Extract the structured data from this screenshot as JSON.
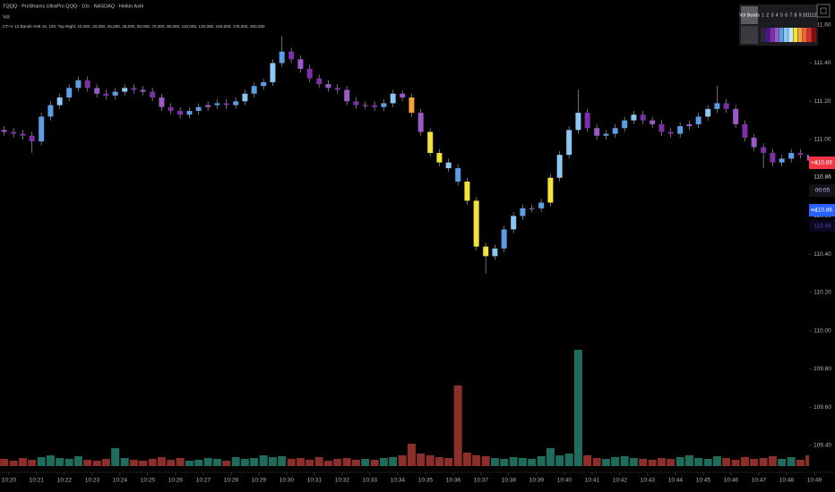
{
  "chart_data": {
    "type": "candlestick",
    "title": "TQQQ · ProShares UltraPro QQQ · 10s · NASDAQ · Heikin Ashi",
    "indicator_labels": [
      "Vol",
      "CT+V 12 Bands AVB 10, 100, Top Right, 10,000, 20,000, 25,000, 35,000, 50,000, 70,000, 90,000, 110,000, 130,000, 150,000, 175,000, 200,000"
    ],
    "x": [
      619.83,
      620.17,
      620.5,
      620.83,
      621.17,
      621.5,
      621.83,
      622.17,
      622.5,
      622.83,
      623.17,
      623.5,
      623.83,
      624.17,
      624.5,
      624.83,
      625.17,
      625.5,
      625.83,
      626.17,
      626.5,
      626.83,
      627.17,
      627.5,
      627.83,
      628.17,
      628.5,
      628.83,
      629.17,
      629.5,
      629.83,
      630.17,
      630.5,
      630.83,
      631.17,
      631.5,
      631.83,
      632.17,
      632.5,
      632.83,
      633.17,
      633.5,
      633.83,
      634.17,
      634.5,
      634.83,
      635.17,
      635.5,
      635.83,
      636.17,
      636.5,
      636.83,
      637.17,
      637.5,
      637.83,
      638.17,
      638.5,
      638.83,
      639.17,
      639.5,
      639.83,
      640.17,
      640.5,
      640.83,
      641.17,
      641.5,
      641.83,
      642.17,
      642.5,
      642.83,
      643.17,
      643.5,
      643.83,
      644.17,
      644.5,
      644.83,
      645.17,
      645.5,
      645.83,
      646.17,
      646.5,
      646.83,
      647.17,
      647.5,
      647.83,
      648.17,
      648.5,
      648.83
    ],
    "open": [
      111.05,
      111.04,
      111.03,
      111.02,
      110.99,
      111.12,
      111.18,
      111.22,
      111.27,
      111.31,
      111.27,
      111.24,
      111.23,
      111.25,
      111.27,
      111.26,
      111.25,
      111.22,
      111.17,
      111.15,
      111.13,
      111.15,
      111.17,
      111.18,
      111.19,
      111.18,
      111.2,
      111.24,
      111.28,
      111.3,
      111.4,
      111.46,
      111.42,
      111.37,
      111.32,
      111.29,
      111.27,
      111.26,
      111.2,
      111.18,
      111.18,
      111.17,
      111.19,
      111.24,
      111.22,
      111.14,
      111.04,
      110.93,
      110.88,
      110.85,
      110.78,
      110.68,
      110.44,
      110.39,
      110.43,
      110.53,
      110.6,
      110.64,
      110.64,
      110.67,
      110.8,
      110.92,
      111.05,
      111.14,
      111.06,
      111.02,
      111.03,
      111.06,
      111.1,
      111.13,
      111.1,
      111.08,
      111.04,
      111.03,
      111.07,
      111.08,
      111.12,
      111.16,
      111.19,
      111.16,
      111.08,
      111.01,
      110.96,
      110.93,
      110.88,
      110.9,
      110.93,
      110.92
    ],
    "high": [
      111.07,
      111.06,
      111.05,
      111.04,
      111.14,
      111.2,
      111.24,
      111.29,
      111.33,
      111.33,
      111.29,
      111.26,
      111.27,
      111.29,
      111.29,
      111.28,
      111.27,
      111.24,
      111.19,
      111.17,
      111.17,
      111.19,
      111.2,
      111.21,
      111.21,
      111.22,
      111.26,
      111.3,
      111.32,
      111.42,
      111.54,
      111.48,
      111.44,
      111.39,
      111.34,
      111.31,
      111.29,
      111.28,
      111.22,
      111.2,
      111.2,
      111.21,
      111.26,
      111.26,
      111.24,
      111.16,
      111.06,
      110.95,
      110.9,
      110.87,
      110.8,
      110.7,
      110.46,
      110.45,
      110.55,
      110.62,
      110.66,
      110.66,
      110.69,
      110.82,
      110.94,
      111.07,
      111.26,
      111.16,
      111.08,
      111.05,
      111.08,
      111.12,
      111.15,
      111.15,
      111.12,
      111.1,
      111.06,
      111.09,
      111.1,
      111.14,
      111.18,
      111.28,
      111.21,
      111.18,
      111.1,
      111.03,
      110.98,
      110.95,
      110.92,
      110.95,
      110.95,
      110.94
    ],
    "low": [
      111.02,
      111.01,
      111.0,
      110.93,
      110.97,
      111.1,
      111.16,
      111.2,
      111.25,
      111.25,
      111.22,
      111.21,
      111.21,
      111.23,
      111.24,
      111.23,
      111.2,
      111.15,
      111.13,
      111.11,
      111.11,
      111.13,
      111.15,
      111.16,
      111.16,
      111.16,
      111.18,
      111.22,
      111.26,
      111.28,
      111.38,
      111.4,
      111.35,
      111.3,
      111.27,
      111.25,
      111.24,
      111.18,
      111.16,
      111.16,
      111.15,
      111.15,
      111.17,
      111.2,
      111.12,
      111.02,
      110.91,
      110.86,
      110.83,
      110.76,
      110.66,
      110.42,
      110.3,
      110.37,
      110.41,
      110.51,
      110.58,
      110.62,
      110.62,
      110.65,
      110.78,
      110.9,
      111.03,
      111.04,
      111.0,
      111.0,
      111.01,
      111.04,
      111.08,
      111.08,
      111.06,
      111.02,
      111.01,
      111.01,
      111.05,
      111.06,
      111.1,
      111.14,
      111.14,
      111.06,
      110.99,
      110.94,
      110.85,
      110.86,
      110.86,
      110.88,
      110.9,
      110.87
    ],
    "close": [
      111.04,
      111.03,
      111.02,
      110.99,
      111.12,
      111.18,
      111.22,
      111.27,
      111.31,
      111.27,
      111.24,
      111.23,
      111.25,
      111.27,
      111.26,
      111.25,
      111.22,
      111.17,
      111.15,
      111.13,
      111.15,
      111.17,
      111.18,
      111.19,
      111.18,
      111.2,
      111.24,
      111.28,
      111.3,
      111.4,
      111.46,
      111.42,
      111.37,
      111.32,
      111.29,
      111.27,
      111.26,
      111.2,
      111.18,
      111.18,
      111.17,
      111.19,
      111.24,
      111.22,
      111.14,
      111.04,
      110.93,
      110.88,
      110.85,
      110.78,
      110.68,
      110.44,
      110.39,
      110.43,
      110.53,
      110.6,
      110.64,
      110.64,
      110.67,
      110.8,
      110.92,
      111.05,
      111.14,
      111.06,
      111.02,
      111.03,
      111.06,
      111.1,
      111.13,
      111.1,
      111.08,
      111.04,
      111.03,
      111.07,
      111.08,
      111.12,
      111.16,
      111.19,
      111.16,
      111.08,
      111.01,
      110.96,
      110.93,
      110.88,
      110.9,
      110.93,
      110.92,
      110.89
    ],
    "band": [
      4,
      3,
      3,
      3,
      5,
      5,
      6,
      5,
      5,
      3,
      4,
      3,
      5,
      6,
      3,
      4,
      3,
      4,
      3,
      3,
      5,
      5,
      4,
      5,
      3,
      5,
      6,
      5,
      5,
      6,
      5,
      3,
      4,
      3,
      3,
      4,
      3,
      4,
      3,
      4,
      3,
      5,
      6,
      4,
      9,
      4,
      8,
      8,
      6,
      5,
      8,
      8,
      8,
      6,
      5,
      6,
      5,
      4,
      5,
      8,
      6,
      6,
      6,
      3,
      4,
      5,
      5,
      5,
      6,
      3,
      4,
      3,
      3,
      5,
      4,
      5,
      6,
      5,
      3,
      4,
      3,
      4,
      3,
      3,
      5,
      5,
      3,
      4
    ],
    "volume": [
      8,
      6,
      9,
      7,
      10,
      12,
      9,
      8,
      11,
      7,
      6,
      8,
      20,
      9,
      7,
      6,
      8,
      10,
      7,
      9,
      6,
      7,
      9,
      8,
      6,
      10,
      8,
      9,
      12,
      10,
      11,
      8,
      9,
      7,
      10,
      6,
      8,
      9,
      7,
      8,
      7,
      9,
      10,
      12,
      25,
      14,
      12,
      10,
      9,
      90,
      15,
      12,
      11,
      9,
      8,
      10,
      9,
      8,
      11,
      20,
      12,
      14,
      130,
      12,
      9,
      8,
      10,
      11,
      9,
      8,
      7,
      9,
      8,
      10,
      12,
      9,
      8,
      11,
      9,
      7,
      10,
      8,
      9,
      11,
      8,
      10,
      7,
      12
    ],
    "volume_up_color": "#1f6b5c",
    "volume_down_color": "#8c2f2b",
    "wick_color": "#8a8a8a",
    "xlim": [
      619.68,
      649.1
    ],
    "ylim": [
      109.32,
      111.73
    ],
    "xticks": [
      {
        "value": 620,
        "label": "10:20"
      },
      {
        "value": 621,
        "label": "10:21"
      },
      {
        "value": 622,
        "label": "10:22"
      },
      {
        "value": 623,
        "label": "10:23"
      },
      {
        "value": 624,
        "label": "10:24"
      },
      {
        "value": 625,
        "label": "10:25"
      },
      {
        "value": 626,
        "label": "10:26"
      },
      {
        "value": 627,
        "label": "10:27"
      },
      {
        "value": 628,
        "label": "10:28"
      },
      {
        "value": 629,
        "label": "10:29"
      },
      {
        "value": 630,
        "label": "10:30"
      },
      {
        "value": 631,
        "label": "10:31"
      },
      {
        "value": 632,
        "label": "10:32"
      },
      {
        "value": 633,
        "label": "10:33"
      },
      {
        "value": 634,
        "label": "10:34"
      },
      {
        "value": 635,
        "label": "10:35"
      },
      {
        "value": 636,
        "label": "10:36"
      },
      {
        "value": 637,
        "label": "10:37"
      },
      {
        "value": 638,
        "label": "10:38"
      },
      {
        "value": 639,
        "label": "10:39"
      },
      {
        "value": 640,
        "label": "10:40"
      },
      {
        "value": 641,
        "label": "10:41"
      },
      {
        "value": 642,
        "label": "10:42"
      },
      {
        "value": 643,
        "label": "10:43"
      },
      {
        "value": 644,
        "label": "10:44"
      },
      {
        "value": 645,
        "label": "10:45"
      },
      {
        "value": 646,
        "label": "10:46"
      },
      {
        "value": 647,
        "label": "10:47"
      },
      {
        "value": 648,
        "label": "10:48"
      },
      {
        "value": 649,
        "label": "10:49"
      }
    ],
    "yticks": [
      {
        "value": 111.6,
        "label": "111.60"
      },
      {
        "value": 111.4,
        "label": "111.40"
      },
      {
        "value": 111.2,
        "label": "111.20"
      },
      {
        "value": 111.0,
        "label": "111.00"
      },
      {
        "value": 110.8,
        "label": "110.80"
      },
      {
        "value": 110.6,
        "label": "110.60"
      },
      {
        "value": 110.4,
        "label": "110.40"
      },
      {
        "value": 110.2,
        "label": "110.20"
      },
      {
        "value": 110.0,
        "label": "110.00"
      },
      {
        "value": 109.8,
        "label": "109.80"
      },
      {
        "value": 109.6,
        "label": "109.60"
      },
      {
        "value": 109.4,
        "label": "109.40"
      }
    ],
    "legend": {
      "title": "Vol Bands",
      "position": "top-right",
      "labels": [
        1,
        2,
        3,
        4,
        5,
        6,
        7,
        8,
        9,
        10,
        11,
        12
      ],
      "colors": [
        "#2a2a3a",
        "#4a148c",
        "#7b2fa8",
        "#9b59c9",
        "#5a9fe6",
        "#8cc8f2",
        "#c4e6ff",
        "#f2e33a",
        "#f4a23c",
        "#ef6236",
        "#d32f2f",
        "#8b0a0a"
      ]
    },
    "price_scale": {
      "ask": {
        "label": "Ask",
        "price": 110.88
      },
      "last": 110.86,
      "countdown": "00:05",
      "bid": {
        "label": "Bid",
        "price": 110.86
      },
      "mid": 110.86
    }
  }
}
